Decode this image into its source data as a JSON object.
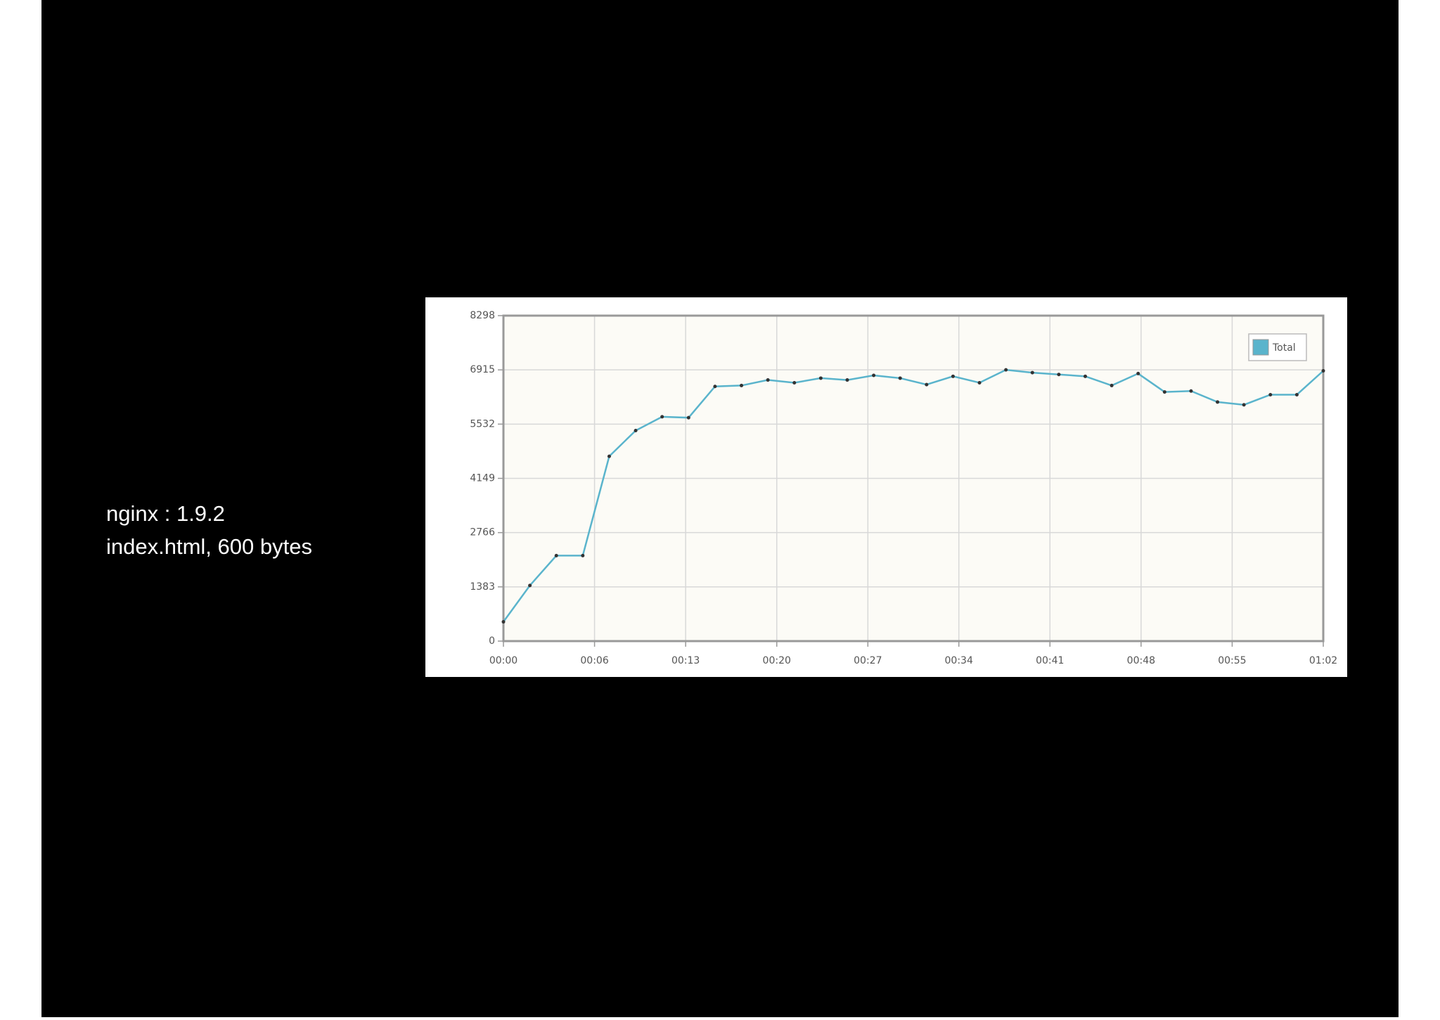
{
  "slide": {
    "lines": [
      "nginx : 1.9.2",
      "index.html, 600 bytes"
    ]
  },
  "chart_data": {
    "type": "line",
    "grid": true,
    "legend": "upper right",
    "x": [
      0,
      2,
      4,
      6,
      8,
      10,
      12,
      14,
      16,
      18,
      20,
      22,
      24,
      26,
      28,
      30,
      32,
      34,
      36,
      38,
      40,
      42,
      44,
      46,
      48,
      50,
      52,
      54,
      56,
      58,
      60,
      62
    ],
    "series": [
      {
        "name": "Total",
        "color": "#5ab4cc",
        "values": [
          492,
          1418,
          2180,
          2180,
          4711,
          5368,
          5719,
          5696,
          6493,
          6516,
          6657,
          6587,
          6704,
          6657,
          6774,
          6704,
          6540,
          6751,
          6587,
          6915,
          6845,
          6798,
          6751,
          6516,
          6821,
          6352,
          6376,
          6095,
          6024,
          6282,
          6282,
          6891
        ]
      }
    ],
    "xlim": [
      0,
      62
    ],
    "xticks": [
      {
        "value": 0,
        "label": "00:00"
      },
      {
        "value": 6.89,
        "label": "00:06"
      },
      {
        "value": 13.78,
        "label": "00:13"
      },
      {
        "value": 20.67,
        "label": "00:20"
      },
      {
        "value": 27.56,
        "label": "00:27"
      },
      {
        "value": 34.44,
        "label": "00:34"
      },
      {
        "value": 41.33,
        "label": "00:41"
      },
      {
        "value": 48.22,
        "label": "00:48"
      },
      {
        "value": 55.11,
        "label": "00:55"
      },
      {
        "value": 62,
        "label": "01:02"
      }
    ],
    "ylim": [
      0,
      8298
    ],
    "yticks": [
      0,
      1383,
      2766,
      4149,
      5532,
      6915,
      8298
    ]
  }
}
